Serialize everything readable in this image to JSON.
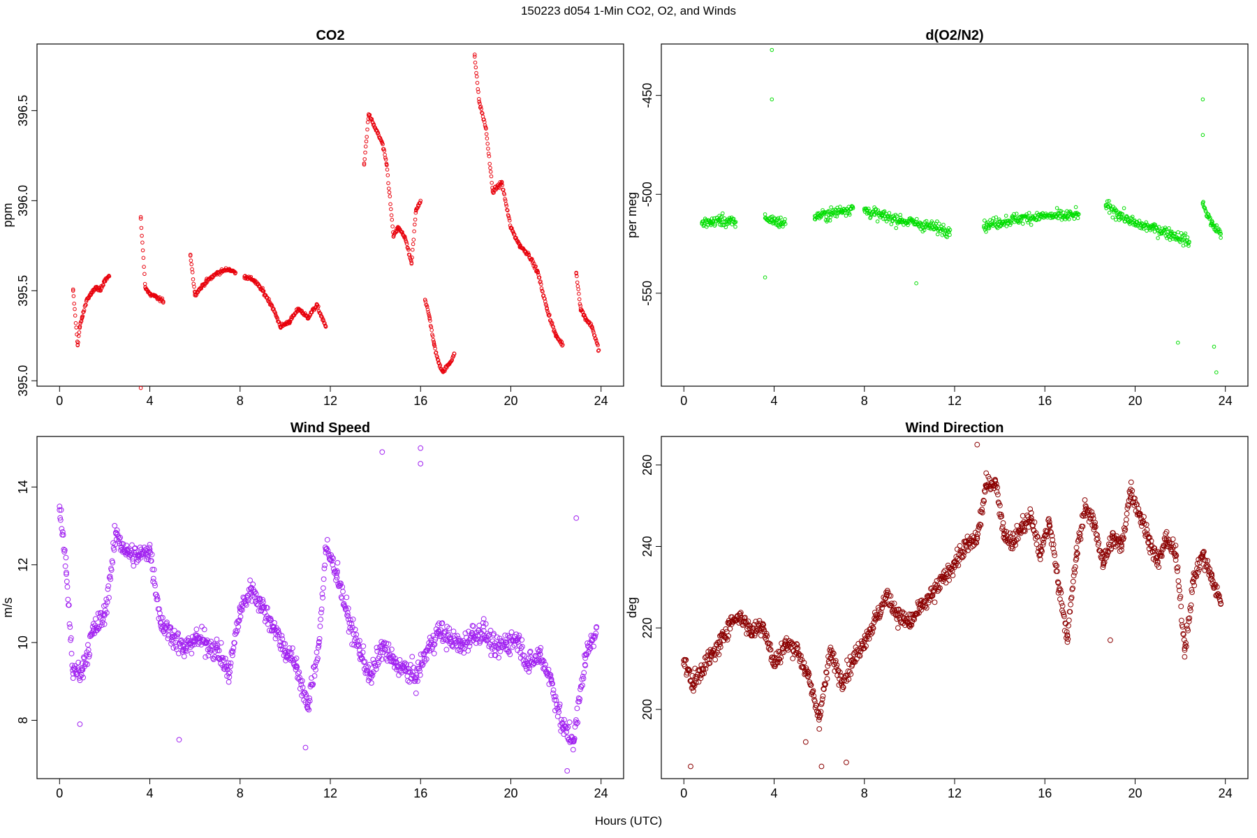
{
  "figure": {
    "title": "150223   d054   1-Min CO2, O2, and Winds",
    "xlabel": "Hours (UTC)"
  },
  "chart_data": [
    {
      "type": "scatter",
      "title": "CO2",
      "xlabel": "",
      "ylabel": "ppm",
      "xlim": [
        -1,
        25
      ],
      "ylim": [
        394.97,
        396.87
      ],
      "xticks": [
        0,
        4,
        8,
        12,
        16,
        20,
        24
      ],
      "yticks": [
        395.0,
        395.5,
        396.0,
        396.5
      ],
      "ytick_labels": [
        "395.0",
        "395.5",
        "396.0",
        "396.5"
      ],
      "color": "#e8000b",
      "marker_radius": 2.3,
      "segments": [
        {
          "x": [
            0.6,
            0.8,
            0.9,
            1.0,
            1.2,
            1.4,
            1.6,
            1.8,
            2.0,
            2.2
          ],
          "y": [
            395.5,
            395.2,
            395.3,
            395.35,
            395.45,
            395.48,
            395.52,
            395.5,
            395.56,
            395.58
          ]
        },
        {
          "x": [
            3.6,
            3.8,
            4.0,
            4.2,
            4.6
          ],
          "y": [
            395.9,
            395.52,
            395.48,
            395.47,
            395.44
          ]
        },
        {
          "x": [
            5.8,
            6.0,
            6.5,
            7.0,
            7.5,
            7.8
          ],
          "y": [
            395.7,
            395.48,
            395.55,
            395.6,
            395.62,
            395.6
          ]
        },
        {
          "x": [
            8.2,
            8.6,
            9.0,
            9.4,
            9.8,
            10.2,
            10.6,
            11.0,
            11.4,
            11.8
          ],
          "y": [
            395.58,
            395.56,
            395.5,
            395.42,
            395.3,
            395.33,
            395.4,
            395.35,
            395.42,
            395.3
          ]
        },
        {
          "x": [
            13.5,
            13.7,
            14.0,
            14.3,
            14.5,
            14.8,
            15.0,
            15.3,
            15.6,
            15.8,
            16.0
          ],
          "y": [
            396.2,
            396.48,
            396.4,
            396.32,
            396.2,
            395.8,
            395.85,
            395.8,
            395.65,
            395.95,
            396.0
          ]
        },
        {
          "x": [
            16.2,
            16.4,
            16.6,
            16.8,
            17.0,
            17.3,
            17.5
          ],
          "y": [
            395.45,
            395.35,
            395.2,
            395.1,
            395.05,
            395.1,
            395.15
          ]
        },
        {
          "x": [
            18.4,
            18.6,
            18.9,
            19.2,
            19.6,
            20.0,
            20.4,
            20.8,
            21.2,
            21.6,
            22.0,
            22.3
          ],
          "y": [
            396.8,
            396.55,
            396.4,
            396.05,
            396.1,
            395.85,
            395.75,
            395.7,
            395.6,
            395.4,
            395.25,
            395.2
          ]
        },
        {
          "x": [
            22.9,
            23.1,
            23.3,
            23.6,
            23.9
          ],
          "y": [
            395.6,
            395.4,
            395.35,
            395.3,
            395.17
          ]
        }
      ],
      "outliers": [
        {
          "x": 3.6,
          "y": 394.96
        }
      ]
    },
    {
      "type": "scatter",
      "title": "d(O2/N2)",
      "xlabel": "",
      "ylabel": "per meg",
      "xlim": [
        -1,
        25
      ],
      "ylim": [
        -597,
        -424
      ],
      "xticks": [
        0,
        4,
        8,
        12,
        16,
        20,
        24
      ],
      "yticks": [
        -450,
        -500,
        -550
      ],
      "ytick_labels": [
        "-450",
        "-500",
        "-550"
      ],
      "color": "#00dd00",
      "marker_radius": 2.3,
      "segments": [
        {
          "x": [
            0.8,
            1.2,
            1.6,
            2.0,
            2.3
          ],
          "y": [
            -515,
            -514,
            -513,
            -514,
            -514
          ]
        },
        {
          "x": [
            3.6,
            3.9,
            4.2,
            4.5
          ],
          "y": [
            -512,
            -513,
            -514,
            -515
          ]
        },
        {
          "x": [
            5.8,
            6.5,
            7.0,
            7.5
          ],
          "y": [
            -511,
            -510,
            -508,
            -507
          ]
        },
        {
          "x": [
            8.0,
            8.8,
            9.6,
            10.4,
            11.2,
            11.8
          ],
          "y": [
            -508,
            -511,
            -513,
            -515,
            -517,
            -518
          ]
        },
        {
          "x": [
            13.3,
            14.0,
            15.0,
            16.0,
            17.0,
            17.5
          ],
          "y": [
            -516,
            -514,
            -512,
            -511,
            -511,
            -510
          ]
        },
        {
          "x": [
            18.7,
            19.3,
            20.0,
            20.8,
            21.6,
            22.4
          ],
          "y": [
            -506,
            -510,
            -515,
            -517,
            -520,
            -524
          ]
        },
        {
          "x": [
            23.0,
            23.4,
            23.8
          ],
          "y": [
            -505,
            -515,
            -520
          ]
        }
      ],
      "outliers": [
        {
          "x": 3.9,
          "y": -427
        },
        {
          "x": 3.9,
          "y": -452
        },
        {
          "x": 23.0,
          "y": -452
        },
        {
          "x": 23.0,
          "y": -470
        },
        {
          "x": 3.6,
          "y": -542
        },
        {
          "x": 10.3,
          "y": -545
        },
        {
          "x": 21.9,
          "y": -575
        },
        {
          "x": 23.6,
          "y": -590
        },
        {
          "x": 23.5,
          "y": -577
        }
      ]
    },
    {
      "type": "scatter",
      "title": "Wind Speed",
      "xlabel": "",
      "ylabel": "m/s",
      "xlim": [
        -1,
        25
      ],
      "ylim": [
        6.5,
        15.3
      ],
      "xticks": [
        0,
        4,
        8,
        12,
        16,
        20,
        24
      ],
      "yticks": [
        8,
        10,
        12,
        14
      ],
      "ytick_labels": [
        "8",
        "10",
        "12",
        "14"
      ],
      "color": "#a020f0",
      "marker_radius": 3.4,
      "segments": [
        {
          "x": [
            0,
            0.3,
            0.6,
            1.0,
            1.5,
            2.0,
            2.5,
            3.0,
            3.5,
            4.0,
            4.5,
            5.0,
            5.5,
            6.0,
            6.5,
            7.0,
            7.5,
            8.0,
            8.5,
            9.0,
            9.5,
            10.0,
            10.5,
            11.0,
            11.5,
            11.8,
            12.3,
            12.8,
            13.3,
            13.8,
            14.3,
            14.8,
            15.3,
            15.8,
            16.3,
            16.8,
            17.3,
            17.8,
            18.3,
            18.8,
            19.3,
            19.8,
            20.3,
            20.8,
            21.3,
            21.8,
            22.3,
            22.8,
            23.3,
            23.8
          ],
          "y": [
            13.5,
            11.8,
            9.2,
            9.3,
            10.3,
            10.7,
            12.8,
            12.3,
            12.2,
            12.4,
            10.5,
            10.2,
            9.8,
            10.1,
            10.0,
            9.8,
            9.2,
            10.8,
            11.4,
            10.9,
            10.4,
            9.8,
            9.4,
            8.3,
            10.0,
            12.4,
            11.8,
            10.6,
            9.8,
            9.1,
            9.9,
            9.5,
            9.3,
            9.1,
            9.8,
            10.3,
            10.1,
            9.9,
            10.2,
            10.3,
            9.8,
            10.0,
            10.1,
            9.4,
            9.7,
            9.0,
            7.8,
            7.5,
            9.6,
            10.4
          ]
        }
      ],
      "outliers": [
        {
          "x": 14.3,
          "y": 14.9
        },
        {
          "x": 16.0,
          "y": 15.0
        },
        {
          "x": 16.0,
          "y": 14.6
        },
        {
          "x": 0.9,
          "y": 7.9
        },
        {
          "x": 22.5,
          "y": 6.7
        },
        {
          "x": 22.9,
          "y": 13.2
        },
        {
          "x": 10.9,
          "y": 7.3
        },
        {
          "x": 5.3,
          "y": 7.5
        }
      ]
    },
    {
      "type": "scatter",
      "title": "Wind Direction",
      "xlabel": "",
      "ylabel": "deg",
      "xlim": [
        -1,
        25
      ],
      "ylim": [
        183,
        267
      ],
      "xticks": [
        0,
        4,
        8,
        12,
        16,
        20,
        24
      ],
      "yticks": [
        200,
        220,
        240,
        260
      ],
      "ytick_labels": [
        "200",
        "220",
        "240",
        "260"
      ],
      "color": "#8b0000",
      "marker_radius": 3.4,
      "segments": [
        {
          "x": [
            0,
            0.4,
            0.8,
            1.2,
            1.6,
            2.0,
            2.5,
            3.0,
            3.5,
            4.0,
            4.5,
            5.0,
            5.5,
            6.0,
            6.5,
            7.0,
            7.5,
            8.0,
            8.5,
            9.0,
            9.5,
            10.0,
            10.5,
            11.0,
            11.5,
            12.0,
            12.5,
            13.0,
            13.4,
            13.8,
            14.2,
            14.6,
            15.0,
            15.4,
            15.8,
            16.2,
            16.6,
            17.0,
            17.4,
            17.8,
            18.2,
            18.6,
            19.0,
            19.4,
            19.8,
            20.2,
            20.6,
            21.0,
            21.4,
            21.8,
            22.2,
            22.6,
            23.0,
            23.4,
            23.8
          ],
          "y": [
            212,
            206,
            210,
            213,
            216,
            221,
            223,
            219,
            221,
            211,
            216,
            215,
            208,
            198,
            214,
            207,
            212,
            217,
            222,
            228,
            223,
            221,
            225,
            228,
            232,
            236,
            240,
            242,
            255,
            256,
            243,
            241,
            245,
            247,
            238,
            246,
            231,
            218,
            238,
            250,
            245,
            236,
            242,
            240,
            254,
            248,
            242,
            236,
            242,
            238,
            215,
            232,
            238,
            232,
            226
          ]
        }
      ],
      "outliers": [
        {
          "x": 0.3,
          "y": 186
        },
        {
          "x": 6.1,
          "y": 186
        },
        {
          "x": 7.2,
          "y": 187
        },
        {
          "x": 13.0,
          "y": 265
        },
        {
          "x": 5.4,
          "y": 192
        },
        {
          "x": 18.9,
          "y": 217
        }
      ]
    }
  ]
}
